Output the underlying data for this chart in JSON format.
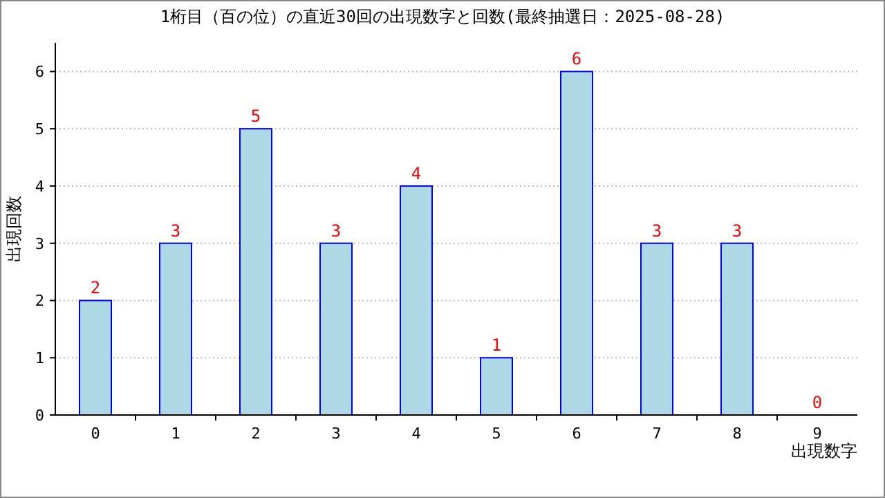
{
  "chart_data": {
    "type": "bar",
    "title": "1桁目（百の位）の直近30回の出現数字と回数(最終抽選日：2025-08-28)",
    "xlabel": "出現数字",
    "ylabel": "出現回数",
    "categories": [
      "0",
      "1",
      "2",
      "3",
      "4",
      "5",
      "6",
      "7",
      "8",
      "9"
    ],
    "values": [
      2,
      3,
      5,
      3,
      4,
      1,
      6,
      3,
      3,
      0
    ],
    "color": "#add8e6",
    "ylim": [
      0,
      6.5
    ],
    "yticks": [
      0,
      1,
      2,
      3,
      4,
      5,
      6
    ],
    "grid": "y",
    "data_labels": true
  }
}
